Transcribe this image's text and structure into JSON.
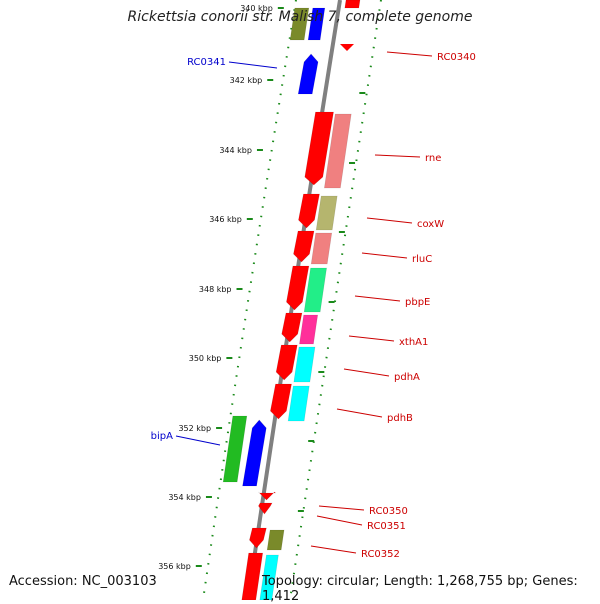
{
  "title": "Rickettsia conorii str. Malish 7, complete genome",
  "footer": {
    "accession": "Accession: NC_003103",
    "summary": "Topology: circular; Length: 1,268,755 bp; Genes: 1,412"
  },
  "ticks": [
    {
      "label": "340 kbp",
      "pos": 340
    },
    {
      "label": "342 kbp",
      "pos": 342
    },
    {
      "label": "344 kbp",
      "pos": 344
    },
    {
      "label": "346 kbp",
      "pos": 346
    },
    {
      "label": "348 kbp",
      "pos": 348
    },
    {
      "label": "350 kbp",
      "pos": 350
    },
    {
      "label": "352 kbp",
      "pos": 352
    },
    {
      "label": "354 kbp",
      "pos": 354
    },
    {
      "label": "356 kbp",
      "pos": 356
    }
  ],
  "gene_labels": [
    {
      "text": "RC0340",
      "color": "#cc0000",
      "side": "right"
    },
    {
      "text": "RC0341",
      "color": "#0000cc",
      "side": "left"
    },
    {
      "text": "rne",
      "color": "#cc0000",
      "side": "right"
    },
    {
      "text": "coxW",
      "color": "#cc0000",
      "side": "right"
    },
    {
      "text": "rluC",
      "color": "#cc0000",
      "side": "right"
    },
    {
      "text": "pbpE",
      "color": "#cc0000",
      "side": "right"
    },
    {
      "text": "xthA1",
      "color": "#cc0000",
      "side": "right"
    },
    {
      "text": "pdhA",
      "color": "#cc0000",
      "side": "right"
    },
    {
      "text": "pdhB",
      "color": "#cc0000",
      "side": "right"
    },
    {
      "text": "bipA",
      "color": "#0000cc",
      "side": "left"
    },
    {
      "text": "RC0350",
      "color": "#cc0000",
      "side": "right"
    },
    {
      "text": "RC0351",
      "color": "#cc0000",
      "side": "right"
    },
    {
      "text": "RC0352",
      "color": "#cc0000",
      "side": "right"
    }
  ],
  "colors": {
    "backbone": "#808080",
    "tick": "#1a8a1a",
    "cds_forward": "#ff0000",
    "cds_reverse": "#0000ff",
    "rna": "#22bb22",
    "cog_pink": "#f08080",
    "cog_olive": "#b5b56e",
    "cog_green": "#22ee88",
    "cog_magenta": "#ff2f9a",
    "cog_cyan": "#00ffff",
    "cog_darkolive": "#7a8a2a"
  }
}
